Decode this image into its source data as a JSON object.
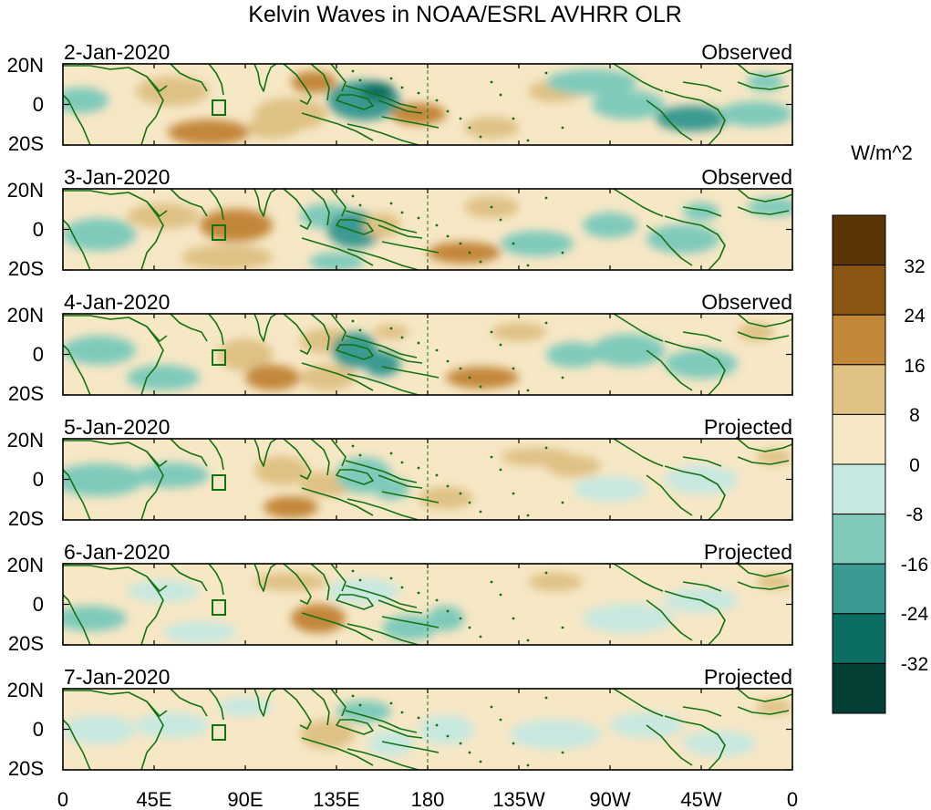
{
  "title": "Kelvin Waves in NOAA/ESRL AVHRR OLR",
  "panels": [
    {
      "date": "2-Jan-2020",
      "status": "Observed"
    },
    {
      "date": "3-Jan-2020",
      "status": "Observed"
    },
    {
      "date": "4-Jan-2020",
      "status": "Observed"
    },
    {
      "date": "5-Jan-2020",
      "status": "Projected"
    },
    {
      "date": "6-Jan-2020",
      "status": "Projected"
    },
    {
      "date": "7-Jan-2020",
      "status": "Projected"
    }
  ],
  "lat_labels": [
    "20N",
    "0",
    "20S"
  ],
  "lon_labels": [
    "0",
    "45E",
    "90E",
    "135E",
    "180",
    "135W",
    "90W",
    "45W",
    "0"
  ],
  "colorbar": {
    "units": "W/m^2",
    "tick_labels": [
      "32",
      "24",
      "16",
      "8",
      "0",
      "-8",
      "-16",
      "-24",
      "-32"
    ],
    "colors": [
      "#5c3506",
      "#8b5612",
      "#c3873a",
      "#dfc184",
      "#f6e7c5",
      "#c7e8e0",
      "#7fcabb",
      "#3a9a91",
      "#0c6e63",
      "#063f35"
    ]
  },
  "colors": {
    "coast": "#117311",
    "box": "#117311"
  }
}
